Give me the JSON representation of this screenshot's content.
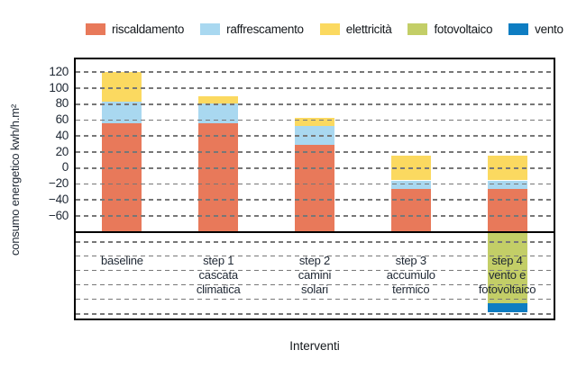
{
  "legend": {
    "items": [
      {
        "label": "riscaldamento",
        "color": "#E8795A"
      },
      {
        "label": "raffrescamento",
        "color": "#A9D8F0"
      },
      {
        "label": "elettricità",
        "color": "#FBD960"
      },
      {
        "label": "fotovoltaico",
        "color": "#C3CE67"
      },
      {
        "label": "vento",
        "color": "#0E7DC2"
      }
    ]
  },
  "chart_data": {
    "type": "bar",
    "subtype": "stacked",
    "title": "",
    "xlabel": "Interventi",
    "ylabel": "consumo energetico kwh/h.m²",
    "ylim": [
      -60,
      120
    ],
    "ytick_step": 20,
    "ytick_values": [
      120,
      100,
      80,
      60,
      40,
      20,
      0,
      -20,
      -40,
      -60
    ],
    "ytick_labels": [
      "120",
      "100",
      "80",
      "60",
      "40",
      "20",
      "0",
      "−20",
      "−40",
      "−60"
    ],
    "grid": "horizontal-dashed",
    "legend_position": "top",
    "bar_base_value": -81,
    "series_colors": {
      "riscaldamento": "#E8795A",
      "raffrescamento": "#A9D8F0",
      "elettricità": "#FBD960",
      "fotovoltaico": "#C3CE67",
      "vento": "#0E7DC2"
    },
    "categories": [
      {
        "lines": [
          "baseline"
        ]
      },
      {
        "lines": [
          "step 1",
          "cascata",
          "climatica"
        ]
      },
      {
        "lines": [
          "step 2",
          "camini",
          "solari"
        ]
      },
      {
        "lines": [
          "step 3",
          "accumulo",
          "termico"
        ]
      },
      {
        "lines": [
          "step 4",
          "vento e",
          "fotovoltaico"
        ]
      }
    ],
    "bars": [
      {
        "category": "baseline",
        "segments": [
          {
            "series": "riscaldamento",
            "from": -81,
            "to": 55
          },
          {
            "series": "raffrescamento",
            "from": 55,
            "to": 83
          },
          {
            "series": "elettricità",
            "from": 83,
            "to": 120
          }
        ]
      },
      {
        "category": "step 1 cascata climatica",
        "segments": [
          {
            "series": "riscaldamento",
            "from": -81,
            "to": 55
          },
          {
            "series": "raffrescamento",
            "from": 55,
            "to": 80
          },
          {
            "series": "elettricità",
            "from": 80,
            "to": 89
          }
        ]
      },
      {
        "category": "step 2 camini solari",
        "segments": [
          {
            "series": "riscaldamento",
            "from": -81,
            "to": 28
          },
          {
            "series": "raffrescamento",
            "from": 28,
            "to": 52
          },
          {
            "series": "elettricità",
            "from": 52,
            "to": 62
          }
        ]
      },
      {
        "category": "step 3 accumulo termico",
        "segments": [
          {
            "series": "riscaldamento",
            "from": -81,
            "to": -27
          },
          {
            "series": "raffrescamento",
            "from": -27,
            "to": -16
          },
          {
            "series": "elettricità",
            "from": -16,
            "to": 15
          }
        ]
      },
      {
        "category": "step 4 vento e fotovoltaico",
        "segments": [
          {
            "series": "riscaldamento",
            "from": -81,
            "to": -27
          },
          {
            "series": "raffrescamento",
            "from": -27,
            "to": -16
          },
          {
            "series": "elettricità",
            "from": -16,
            "to": 15
          },
          {
            "series": "fotovoltaico",
            "from": -81,
            "to": -170
          },
          {
            "series": "vento",
            "from": -170,
            "to": -181
          }
        ]
      }
    ]
  }
}
